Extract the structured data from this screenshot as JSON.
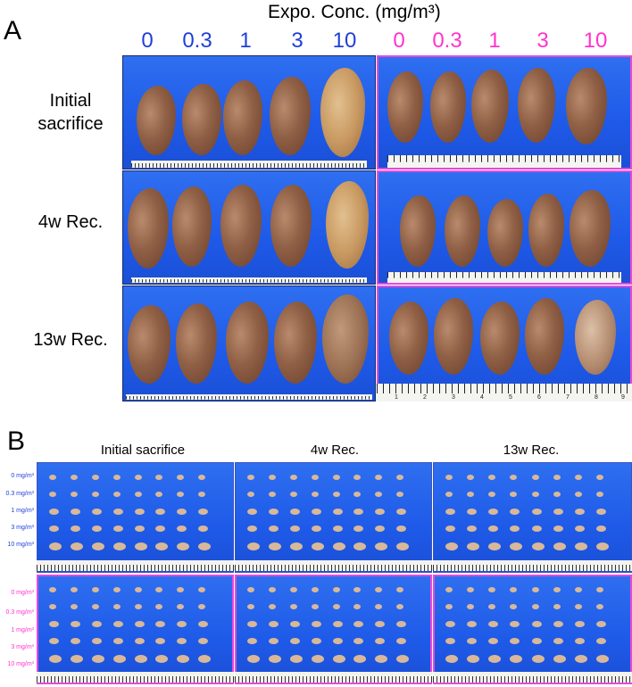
{
  "panel_a": {
    "letter": "A",
    "title": "Expo. Conc. (mg/m³)",
    "conc_blue": [
      "0",
      "0.3",
      "1",
      "3",
      "10"
    ],
    "conc_magenta": [
      "0",
      "0.3",
      "1",
      "3",
      "10"
    ],
    "row_labels": [
      "Initial sacrifice",
      "4w Rec.",
      "13w Rec."
    ],
    "ruler_numbers": [
      "1",
      "2",
      "3",
      "4",
      "5",
      "6",
      "7",
      "8",
      "9"
    ]
  },
  "panel_b": {
    "letter": "B",
    "col_labels": [
      "Initial sacrifice",
      "4w Rec.",
      "13w Rec."
    ],
    "conc_labels": [
      "0 mg/m³",
      "0.3 mg/m³",
      "1 mg/m³",
      "3 mg/m³",
      "10 mg/m³"
    ]
  },
  "colors": {
    "blue_label": "#1f3fd8",
    "magenta_label": "#ff33cc",
    "photo_background": "#1e5ae8"
  }
}
